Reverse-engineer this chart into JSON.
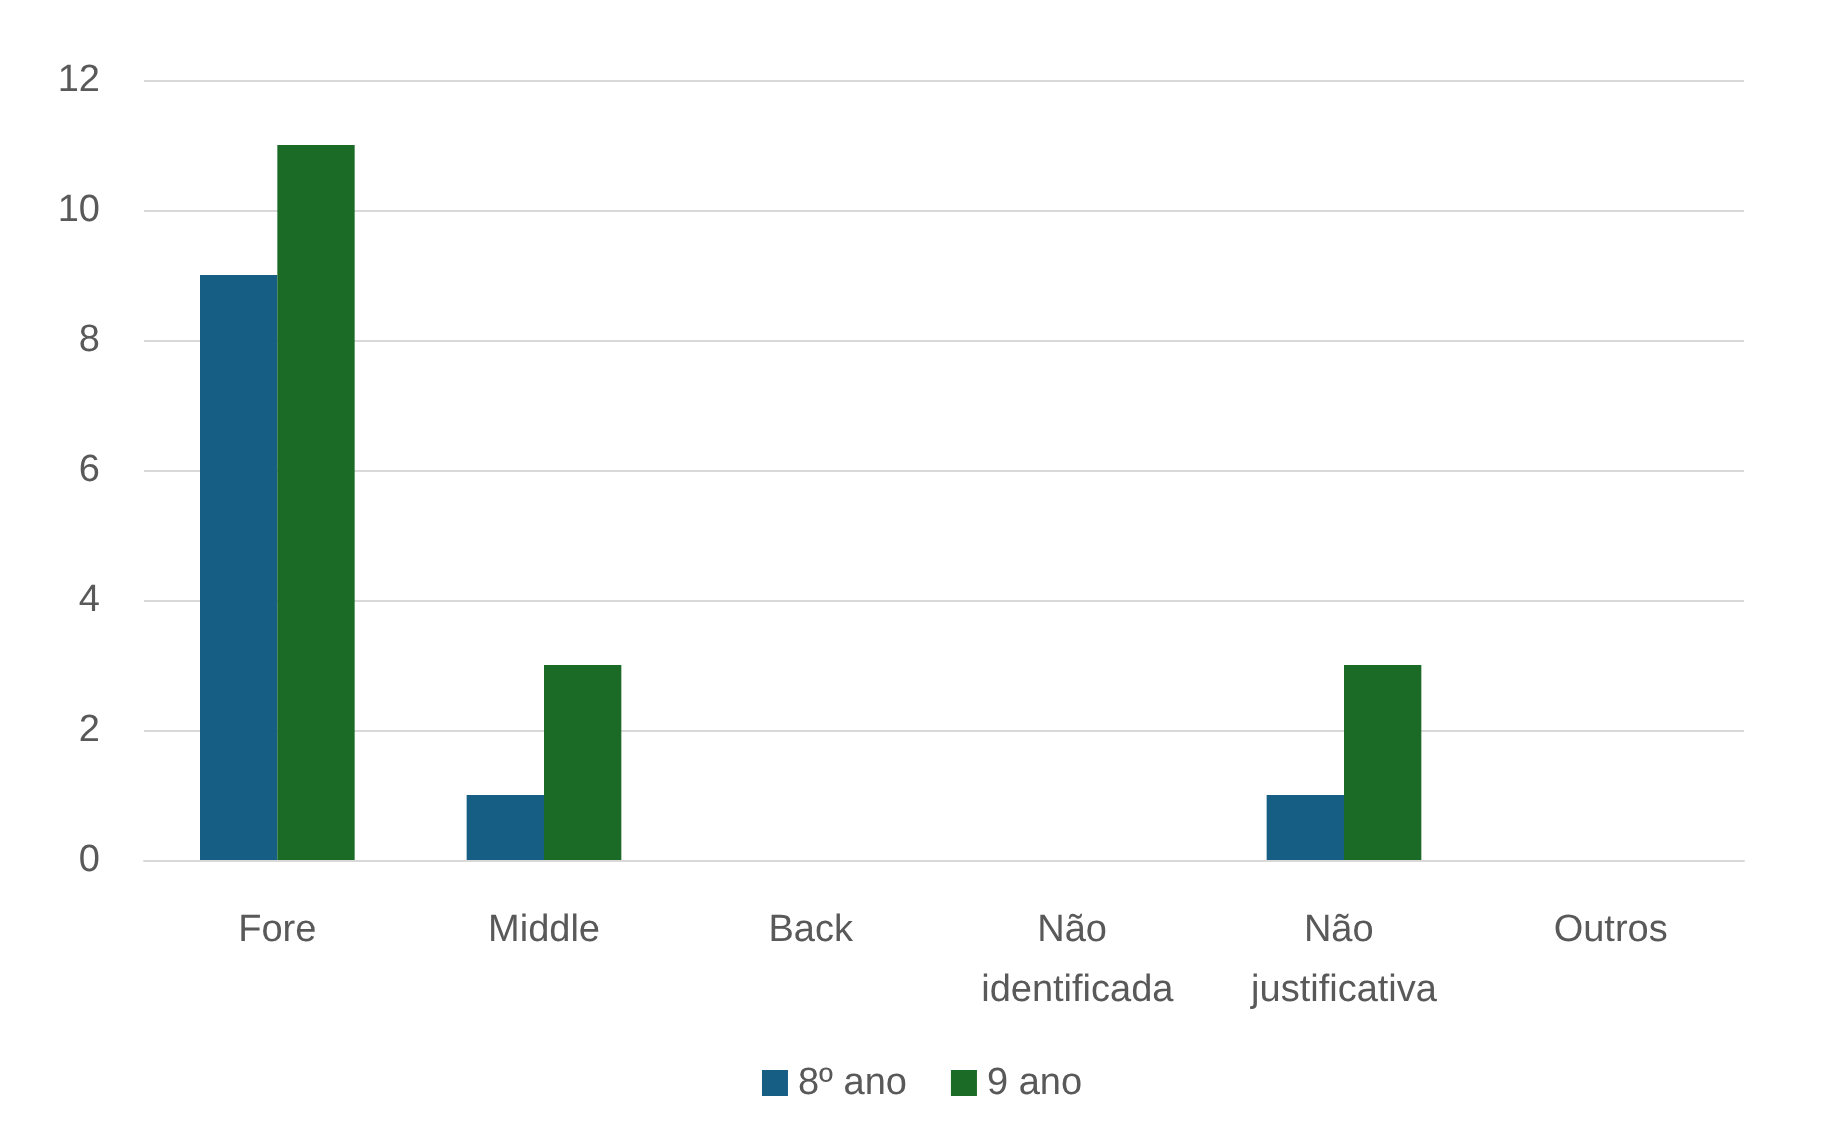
{
  "chart_data": {
    "type": "bar",
    "categories": [
      "Fore",
      "Middle",
      "Back",
      "Não identificada",
      "Não justificativa",
      "Outros"
    ],
    "series": [
      {
        "name": "8º ano",
        "color": "#165e83",
        "values": [
          9,
          1,
          0,
          0,
          1,
          0
        ]
      },
      {
        "name": "9 ano",
        "color": "#1b6b26",
        "values": [
          11,
          3,
          0,
          0,
          3,
          0
        ]
      }
    ],
    "ylim": [
      0,
      12
    ],
    "yticks": [
      0,
      2,
      4,
      6,
      8,
      10,
      12
    ],
    "grid": "y",
    "legend": "bottom"
  }
}
